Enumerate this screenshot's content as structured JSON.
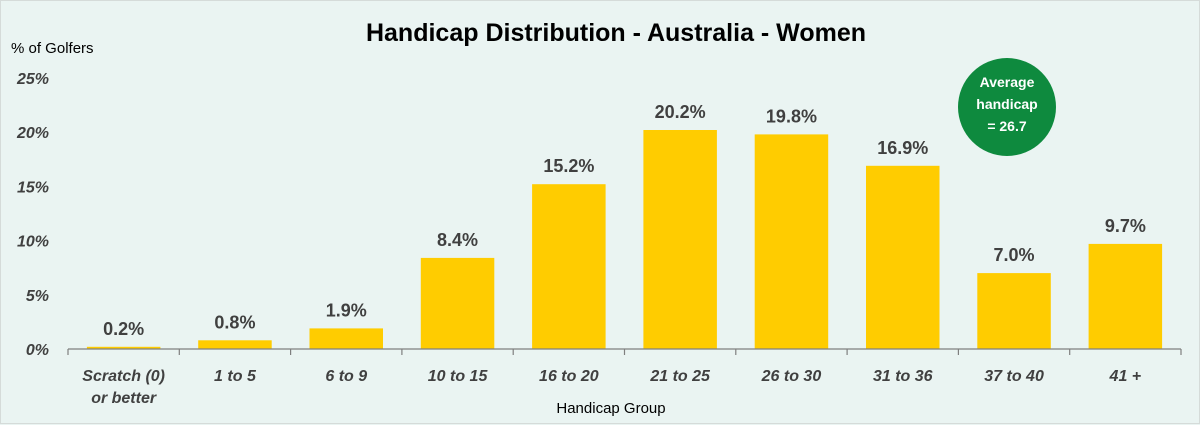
{
  "chart_data": {
    "type": "bar",
    "title": "Handicap Distribution - Australia - Women",
    "ylabel": "% of Golfers",
    "xlabel": "Handicap Group",
    "categories": [
      [
        "Scratch (0)",
        "or better"
      ],
      [
        "1 to 5"
      ],
      [
        "6 to 9"
      ],
      [
        "10 to 15"
      ],
      [
        "16 to 20"
      ],
      [
        "21 to 25"
      ],
      [
        "26 to 30"
      ],
      [
        "31 to 36"
      ],
      [
        "37 to 40"
      ],
      [
        "41 +"
      ]
    ],
    "values": [
      0.2,
      0.8,
      1.9,
      8.4,
      15.2,
      20.2,
      19.8,
      16.9,
      7.0,
      9.7
    ],
    "data_labels": [
      "0.2%",
      "0.8%",
      "1.9%",
      "8.4%",
      "15.2%",
      "20.2%",
      "19.8%",
      "16.9%",
      "7.0%",
      "9.7%"
    ],
    "ylim": [
      0,
      25
    ],
    "yticks": [
      0,
      5,
      10,
      15,
      20,
      25
    ],
    "ytick_labels": [
      "0%",
      "5%",
      "10%",
      "15%",
      "20%",
      "25%"
    ],
    "grid": false,
    "legend": "none",
    "bar_color": "#ffcc00",
    "annotation": {
      "lines": [
        "Average",
        "handicap",
        "= 26.7"
      ],
      "color": "#0e8a3e"
    }
  }
}
